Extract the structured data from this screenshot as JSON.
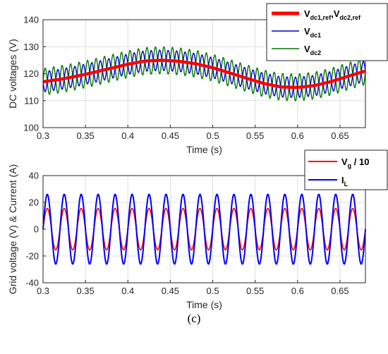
{
  "caption": "(c)",
  "chart_data": [
    {
      "type": "line",
      "xlabel": "Time (s)",
      "ylabel": "DC voltages (V)",
      "xlim": [
        0.3,
        0.68
      ],
      "ylim": [
        100,
        140
      ],
      "xticks": [
        0.3,
        0.35,
        0.4,
        0.45,
        0.5,
        0.55,
        0.6,
        0.65
      ],
      "xtick_labels": [
        "0.3",
        "0.35",
        "0.4",
        "0.45",
        "0.5",
        "0.55",
        "0.6",
        "0.65"
      ],
      "yticks": [
        100,
        110,
        120,
        130,
        140
      ],
      "ytick_labels": [
        "100",
        "110",
        "120",
        "130",
        "140"
      ],
      "grid": true,
      "legend_position": "top-right",
      "series": [
        {
          "name": "Vdc1,ref,Vdc2,ref",
          "legend_main": "V",
          "legend_sub": "dc1,ref",
          "legend_main2": "V",
          "legend_sub2": "dc2,ref",
          "color": "#ff0000",
          "x": [
            0.3,
            0.32,
            0.34,
            0.36,
            0.38,
            0.4,
            0.42,
            0.44,
            0.46,
            0.48,
            0.5,
            0.52,
            0.54,
            0.56,
            0.58,
            0.6,
            0.62,
            0.64,
            0.66,
            0.68
          ],
          "values": [
            117,
            117.9,
            119.1,
            120.5,
            122,
            123.5,
            124.7,
            125,
            124.6,
            123.7,
            122.2,
            120.3,
            118.3,
            116.4,
            115.1,
            114.9,
            115.6,
            117.1,
            119.1,
            121
          ]
        },
        {
          "name": "Vdc1",
          "legend_main": "V",
          "legend_sub": "dc1",
          "color": "#0000cc",
          "ripple_amplitude": 3.8,
          "ripple_cycles": 38
        },
        {
          "name": "Vdc2",
          "legend_main": "V",
          "legend_sub": "dc2",
          "color": "#007700",
          "ripple_amplitude": 5,
          "ripple_cycles": 38
        }
      ]
    },
    {
      "type": "line",
      "xlabel": "Time (s)",
      "ylabel": "Grid voltage (V) & Current (A)",
      "xlim": [
        0.3,
        0.68
      ],
      "ylim": [
        -40,
        40
      ],
      "xticks": [
        0.3,
        0.35,
        0.4,
        0.45,
        0.5,
        0.55,
        0.6,
        0.65
      ],
      "xtick_labels": [
        "0.3",
        "0.35",
        "0.4",
        "0.45",
        "0.5",
        "0.55",
        "0.6",
        "0.65"
      ],
      "yticks": [
        -40,
        -20,
        0,
        20,
        40
      ],
      "ytick_labels": [
        "-40",
        "-20",
        "0",
        "20",
        "40"
      ],
      "grid": true,
      "legend_position": "top-right",
      "frequency_hz": 50,
      "series": [
        {
          "name": "Vg / 10",
          "legend_main": "V",
          "legend_sub": "g",
          "legend_tail": " / 10",
          "color": "#ff0000",
          "amplitude": 15.5
        },
        {
          "name": "IL",
          "legend_main": "I",
          "legend_sub": "L",
          "color": "#0000ff",
          "amplitude": 26
        }
      ]
    }
  ]
}
